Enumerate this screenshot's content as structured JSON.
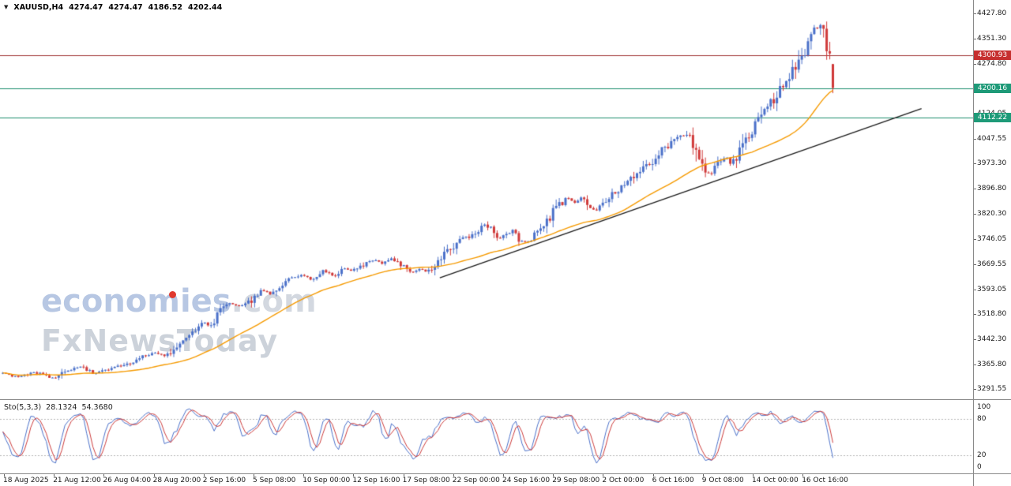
{
  "window": {
    "quote_bar": {
      "dropdown_icon": "▼",
      "symbol": "XAUUSD,H4",
      "open": "4274.47",
      "high": "4274.47",
      "low": "4186.52",
      "close": "4202.44"
    }
  },
  "watermark": {
    "brand": "economies",
    "brand_suffix": ".com",
    "tagline": "FxNewsToday",
    "brand_color": "#b7c7e3",
    "suffix_color": "#d3d8e0",
    "tagline_color": "#ccd2da",
    "dot_color": "#e0392e"
  },
  "chart_data": {
    "type": "candlestick",
    "title": "XAUUSD,H4",
    "symbol": "XAUUSD",
    "timeframe": "H4",
    "ylim": [
      3291.55,
      4427.8
    ],
    "y_ticks": [
      "4427.80",
      "4351.30",
      "4274.80",
      "4124.05",
      "4047.55",
      "3973.30",
      "3896.80",
      "3820.30",
      "3746.05",
      "3669.55",
      "3593.05",
      "3518.80",
      "3442.30",
      "3365.80",
      "3291.55"
    ],
    "x_labels": [
      "18 Aug 2025",
      "21 Aug 12:00",
      "26 Aug 04:00",
      "28 Aug 20:00",
      "2 Sep 16:00",
      "5 Sep 08:00",
      "10 Sep 00:00",
      "12 Sep 16:00",
      "17 Sep 08:00",
      "22 Sep 00:00",
      "24 Sep 16:00",
      "29 Sep 08:00",
      "2 Oct 00:00",
      "6 Oct 16:00",
      "9 Oct 08:00",
      "14 Oct 00:00",
      "16 Oct 16:00"
    ],
    "up_color": "#4a70c9",
    "down_color": "#d03a3a",
    "num_candles": 268,
    "last_candle": {
      "open": 4274.47,
      "high": 4274.47,
      "low": 4186.52,
      "close": 4202.44
    },
    "price_path_anchors": [
      [
        0.0,
        3338
      ],
      [
        0.018,
        3328
      ],
      [
        0.038,
        3342
      ],
      [
        0.062,
        3324
      ],
      [
        0.08,
        3349
      ],
      [
        0.095,
        3361
      ],
      [
        0.108,
        3338
      ],
      [
        0.122,
        3348
      ],
      [
        0.14,
        3359
      ],
      [
        0.16,
        3378
      ],
      [
        0.182,
        3404
      ],
      [
        0.196,
        3391
      ],
      [
        0.212,
        3428
      ],
      [
        0.228,
        3456
      ],
      [
        0.242,
        3492
      ],
      [
        0.252,
        3481
      ],
      [
        0.263,
        3532
      ],
      [
        0.275,
        3552
      ],
      [
        0.287,
        3540
      ],
      [
        0.302,
        3563
      ],
      [
        0.313,
        3592
      ],
      [
        0.323,
        3578
      ],
      [
        0.336,
        3606
      ],
      [
        0.35,
        3630
      ],
      [
        0.362,
        3638
      ],
      [
        0.373,
        3621
      ],
      [
        0.386,
        3648
      ],
      [
        0.398,
        3634
      ],
      [
        0.41,
        3656
      ],
      [
        0.422,
        3649
      ],
      [
        0.436,
        3669
      ],
      [
        0.448,
        3683
      ],
      [
        0.458,
        3671
      ],
      [
        0.468,
        3689
      ],
      [
        0.482,
        3661
      ],
      [
        0.492,
        3644
      ],
      [
        0.503,
        3653
      ],
      [
        0.513,
        3647
      ],
      [
        0.523,
        3672
      ],
      [
        0.533,
        3701
      ],
      [
        0.542,
        3724
      ],
      [
        0.552,
        3753
      ],
      [
        0.563,
        3747
      ],
      [
        0.572,
        3773
      ],
      [
        0.581,
        3791
      ],
      [
        0.589,
        3771
      ],
      [
        0.598,
        3749
      ],
      [
        0.606,
        3759
      ],
      [
        0.614,
        3769
      ],
      [
        0.623,
        3741
      ],
      [
        0.633,
        3734
      ],
      [
        0.643,
        3763
      ],
      [
        0.653,
        3789
      ],
      [
        0.662,
        3823
      ],
      [
        0.672,
        3853
      ],
      [
        0.681,
        3869
      ],
      [
        0.69,
        3857
      ],
      [
        0.698,
        3875
      ],
      [
        0.706,
        3847
      ],
      [
        0.713,
        3826
      ],
      [
        0.723,
        3853
      ],
      [
        0.733,
        3879
      ],
      [
        0.742,
        3893
      ],
      [
        0.752,
        3913
      ],
      [
        0.762,
        3936
      ],
      [
        0.772,
        3959
      ],
      [
        0.782,
        3979
      ],
      [
        0.792,
        4006
      ],
      [
        0.802,
        4031
      ],
      [
        0.814,
        4053
      ],
      [
        0.824,
        4061
      ],
      [
        0.831,
        4038
      ],
      [
        0.838,
        3994
      ],
      [
        0.845,
        3953
      ],
      [
        0.852,
        3943
      ],
      [
        0.859,
        3966
      ],
      [
        0.866,
        3981
      ],
      [
        0.872,
        3993
      ],
      [
        0.878,
        3971
      ],
      [
        0.885,
        4003
      ],
      [
        0.892,
        4033
      ],
      [
        0.902,
        4069
      ],
      [
        0.912,
        4106
      ],
      [
        0.922,
        4143
      ],
      [
        0.932,
        4179
      ],
      [
        0.941,
        4211
      ],
      [
        0.951,
        4249
      ],
      [
        0.961,
        4293
      ],
      [
        0.971,
        4341
      ],
      [
        0.979,
        4379
      ],
      [
        0.984,
        4391
      ],
      [
        0.989,
        4352
      ],
      [
        0.993,
        4295
      ],
      [
        0.997,
        4272
      ],
      [
        1.0,
        4202
      ]
    ],
    "horizontal_lines": [
      {
        "label": "4300.93",
        "price": 4300.93,
        "line_color": "#a03636",
        "tag_color": "#c62f2f"
      },
      {
        "label": "4200.16",
        "price": 4200.16,
        "line_color": "#1e8e6e",
        "tag_color": "#1e9a78"
      },
      {
        "label": "4112.22",
        "price": 4112.22,
        "line_color": "#1e8e6e",
        "tag_color": "#1e9a78"
      }
    ],
    "trendline": {
      "x1_frac": 0.452,
      "price1": 3628,
      "x2_frac": 0.947,
      "price2": 4140,
      "color": "#1a1a1a"
    },
    "moving_average": {
      "period": 34,
      "color": "#f59a00"
    },
    "indicator": {
      "label": "Sto(5,3,3)",
      "value_main": "28.1324",
      "value_signal": "54.3680",
      "k_period": 5,
      "slowing": 3,
      "d_period": 3,
      "levels": [
        "100",
        "80",
        "20",
        "0"
      ],
      "level_lines": [
        80,
        20
      ],
      "main_color": "#4a70c9",
      "signal_color": "#cc3b3b"
    }
  }
}
